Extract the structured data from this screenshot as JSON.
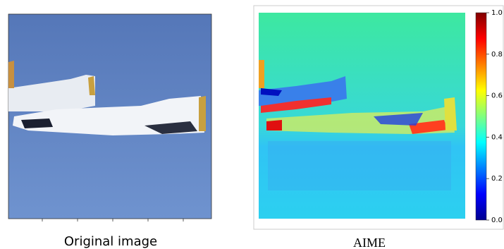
{
  "panels": [
    {
      "caption": "Original image"
    },
    {
      "caption": "AIME"
    }
  ],
  "colorbar": {
    "lim": [
      0,
      1
    ],
    "ticks": [
      {
        "value": 0,
        "label": "0.0"
      },
      0.2,
      0.4,
      0.6,
      0.8,
      {
        "value": 1,
        "label": "1.0"
      }
    ]
  }
}
